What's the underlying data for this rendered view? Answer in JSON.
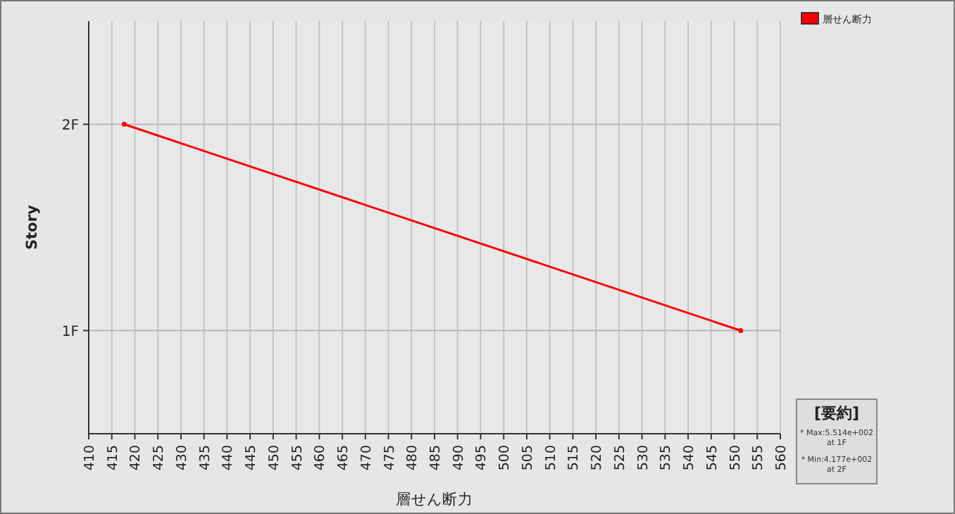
{
  "chart_data": {
    "type": "line",
    "orientation": "horizontal",
    "xlabel": "層せん断力",
    "ylabel": "Story",
    "categories": [
      "2F",
      "1F"
    ],
    "series": [
      {
        "name": "層せん断力",
        "color": "#ff0000",
        "values": [
          417.7,
          551.4
        ]
      }
    ],
    "xlim": [
      410,
      560
    ],
    "xticks": [
      410,
      415,
      420,
      425,
      430,
      435,
      440,
      445,
      450,
      455,
      460,
      465,
      470,
      475,
      480,
      485,
      490,
      495,
      500,
      505,
      510,
      515,
      520,
      525,
      530,
      535,
      540,
      545,
      550,
      555,
      560
    ],
    "grid": true,
    "legend": "top right",
    "marker": "circle",
    "annotations": [
      "[要約]",
      "* Max:5.514e+002 at 1F",
      "* Min:4.177e+002 at 2F"
    ]
  }
}
